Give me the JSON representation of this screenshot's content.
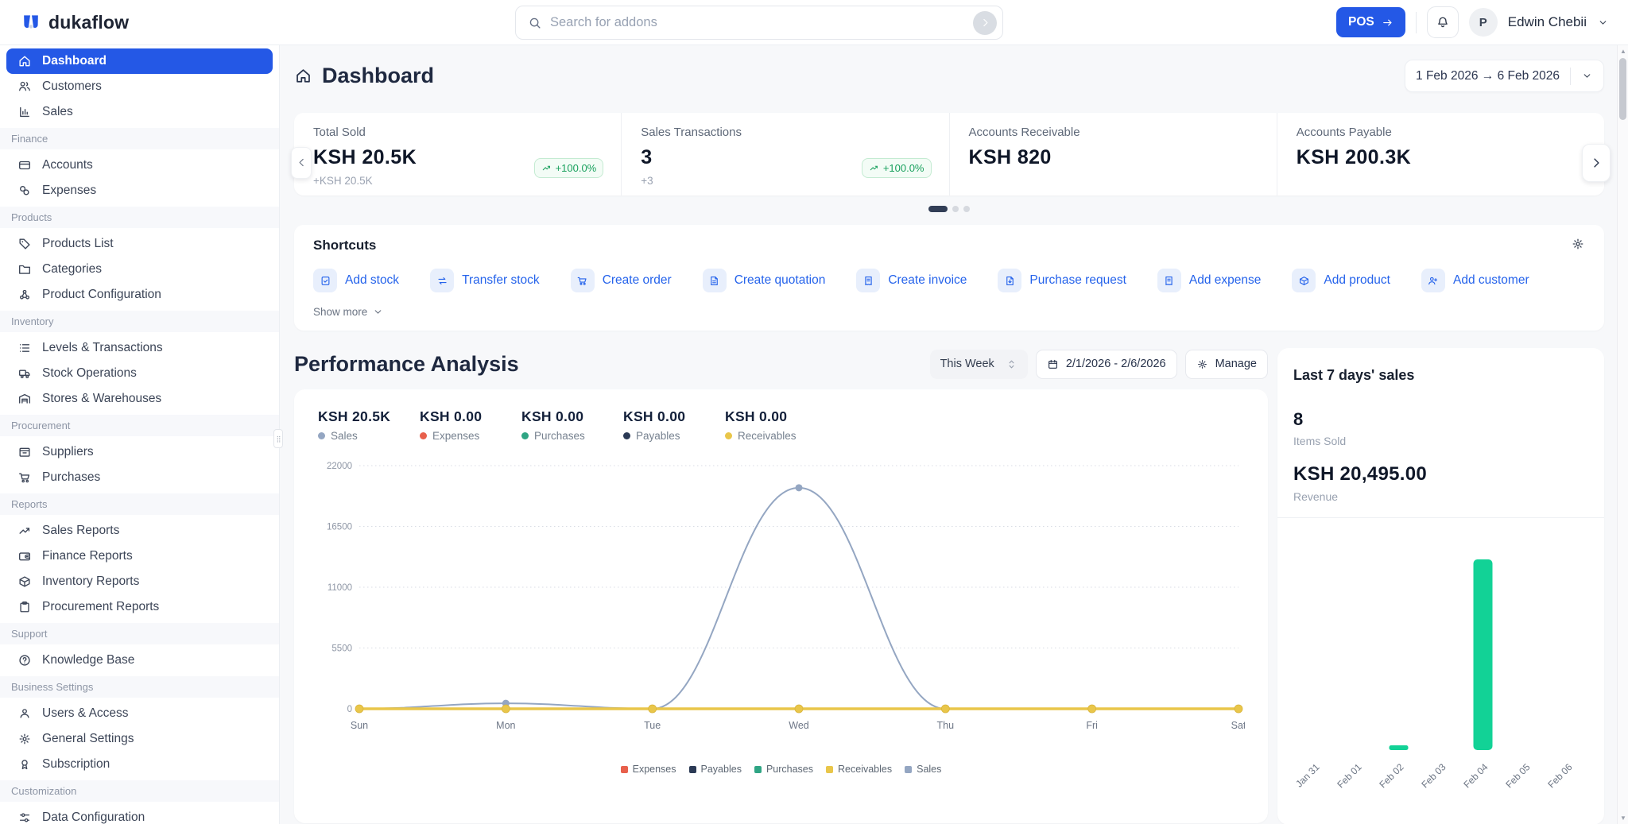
{
  "brand": {
    "name": "dukaflow"
  },
  "topbar": {
    "search_placeholder": "Search for addons",
    "pos_label": "POS",
    "user_initial": "P",
    "user_name": "Edwin Chebii"
  },
  "sidebar": {
    "groups": [
      {
        "section": null,
        "items": [
          {
            "label": "Dashboard",
            "icon": "home",
            "active": true
          },
          {
            "label": "Customers",
            "icon": "users"
          },
          {
            "label": "Sales",
            "icon": "chart"
          }
        ]
      },
      {
        "section": "Finance",
        "items": [
          {
            "label": "Accounts",
            "icon": "card"
          },
          {
            "label": "Expenses",
            "icon": "coins"
          }
        ]
      },
      {
        "section": "Products",
        "items": [
          {
            "label": "Products List",
            "icon": "tag"
          },
          {
            "label": "Categories",
            "icon": "folder"
          },
          {
            "label": "Product Configuration",
            "icon": "nodes"
          }
        ]
      },
      {
        "section": "Inventory",
        "items": [
          {
            "label": "Levels & Transactions",
            "icon": "list"
          },
          {
            "label": "Stock Operations",
            "icon": "truck"
          },
          {
            "label": "Stores & Warehouses",
            "icon": "warehouse"
          }
        ]
      },
      {
        "section": "Procurement",
        "items": [
          {
            "label": "Suppliers",
            "icon": "supplier"
          },
          {
            "label": "Purchases",
            "icon": "cart"
          }
        ]
      },
      {
        "section": "Reports",
        "items": [
          {
            "label": "Sales Reports",
            "icon": "trend"
          },
          {
            "label": "Finance Reports",
            "icon": "wallet"
          },
          {
            "label": "Inventory Reports",
            "icon": "box"
          },
          {
            "label": "Procurement Reports",
            "icon": "clipboard"
          }
        ]
      },
      {
        "section": "Support",
        "items": [
          {
            "label": "Knowledge Base",
            "icon": "help"
          }
        ]
      },
      {
        "section": "Business Settings",
        "items": [
          {
            "label": "Users & Access",
            "icon": "user"
          },
          {
            "label": "General Settings",
            "icon": "gear"
          },
          {
            "label": "Subscription",
            "icon": "badge"
          }
        ]
      },
      {
        "section": "Customization",
        "items": [
          {
            "label": "Data Configuration",
            "icon": "sliders"
          }
        ]
      }
    ]
  },
  "page": {
    "title": "Dashboard",
    "date_range": "1 Feb 2026 → 6 Feb 2026"
  },
  "stats_cards": [
    {
      "title": "Total Sold",
      "value": "KSH 20.5K",
      "delta": "+KSH 20.5K",
      "badge": "+100.0%"
    },
    {
      "title": "Sales Transactions",
      "value": "3",
      "delta": "+3",
      "badge": "+100.0%"
    },
    {
      "title": "Accounts Receivable",
      "value": "KSH 820"
    },
    {
      "title": "Accounts Payable",
      "value": "KSH 200.3K"
    }
  ],
  "shortcuts": {
    "title": "Shortcuts",
    "show_more_label": "Show more",
    "items": [
      {
        "label": "Add stock",
        "icon": "stock"
      },
      {
        "label": "Transfer stock",
        "icon": "transfer"
      },
      {
        "label": "Create order",
        "icon": "cart"
      },
      {
        "label": "Create quotation",
        "icon": "file"
      },
      {
        "label": "Create invoice",
        "icon": "receipt"
      },
      {
        "label": "Purchase request",
        "icon": "filearrow"
      },
      {
        "label": "Add expense",
        "icon": "receipt"
      },
      {
        "label": "Add product",
        "icon": "box"
      },
      {
        "label": "Add customer",
        "icon": "userplus"
      }
    ]
  },
  "performance": {
    "title": "Performance Analysis",
    "period": "This Week",
    "date_range": "2/1/2026 - 2/6/2026",
    "manage_label": "Manage",
    "stats": [
      {
        "value": "KSH 20.5K",
        "label": "Sales",
        "color": "#94a6c2"
      },
      {
        "value": "KSH 0.00",
        "label": "Expenses",
        "color": "#e8604c"
      },
      {
        "value": "KSH 0.00",
        "label": "Purchases",
        "color": "#2fa584"
      },
      {
        "value": "KSH 0.00",
        "label": "Payables",
        "color": "#2b3a55"
      },
      {
        "value": "KSH 0.00",
        "label": "Receivables",
        "color": "#e9c64a"
      }
    ]
  },
  "sales_panel": {
    "title": "Last 7 days' sales",
    "items_sold": "8",
    "items_sold_label": "Items Sold",
    "revenue": "KSH 20,495.00",
    "revenue_label": "Revenue"
  },
  "colors": {
    "primary": "#2458e6",
    "shortcut_blue": "#2563eb",
    "badge_green": "#17a05c",
    "bar_green": "#12d296"
  },
  "chart_data": [
    {
      "type": "line",
      "title": "Performance Analysis",
      "x": [
        "Sun",
        "Mon",
        "Tue",
        "Wed",
        "Thu",
        "Fri",
        "Sat"
      ],
      "series": [
        {
          "name": "Expenses",
          "color": "#e8604c",
          "values": [
            0,
            0,
            0,
            0,
            0,
            0,
            0
          ]
        },
        {
          "name": "Payables",
          "color": "#2b3a55",
          "values": [
            0,
            0,
            0,
            0,
            0,
            0,
            0
          ]
        },
        {
          "name": "Purchases",
          "color": "#2fa584",
          "values": [
            0,
            0,
            0,
            0,
            0,
            0,
            0
          ]
        },
        {
          "name": "Receivables",
          "color": "#e9c64a",
          "values": [
            0,
            0,
            0,
            0,
            0,
            0,
            0
          ]
        },
        {
          "name": "Sales",
          "color": "#94a6c2",
          "values": [
            0,
            495,
            0,
            20000,
            0,
            0,
            0
          ]
        }
      ],
      "ylim": [
        0,
        22000
      ],
      "yticks": [
        0,
        5500,
        11000,
        16500,
        22000
      ],
      "grid": "horizontal-dotted",
      "legend_position": "bottom"
    },
    {
      "type": "bar",
      "title": "Last 7 days' sales",
      "categories": [
        "Jan 31",
        "Feb 01",
        "Feb 02",
        "Feb 03",
        "Feb 04",
        "Feb 05",
        "Feb 06"
      ],
      "values": [
        0,
        0,
        495,
        0,
        20000,
        0,
        0
      ],
      "bar_color": "#12d296",
      "ylim": [
        0,
        21000
      ],
      "xlabel": "",
      "ylabel": ""
    }
  ]
}
